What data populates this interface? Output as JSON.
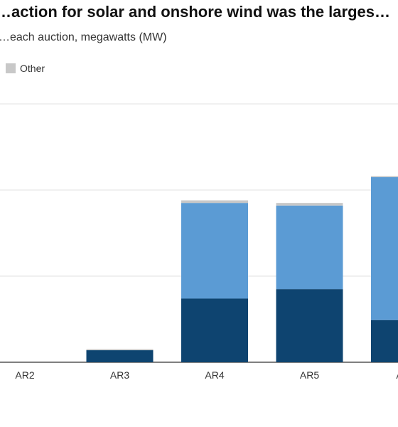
{
  "chart_data": {
    "type": "bar",
    "stacked": true,
    "title": "…action for solar and onshore wind was the larges…",
    "subtitle": "…each auction, megawatts (MW)",
    "categories": [
      "AR2",
      "AR3",
      "AR4",
      "AR5",
      "A…"
    ],
    "series": [
      {
        "name": "",
        "color": "#0e4470",
        "values": [
          0,
          70,
          370,
          425,
          245
        ]
      },
      {
        "name": "",
        "color": "#5b9bd4",
        "values": [
          0,
          0,
          555,
          485,
          830
        ]
      },
      {
        "name": "Other",
        "color": "#c8c8c8",
        "values": [
          0,
          6,
          15,
          15,
          6
        ]
      }
    ],
    "ylim": [
      0,
      1500
    ],
    "yticks": [
      0,
      500,
      1000,
      1500
    ],
    "grid": true,
    "legend_position": "top-left"
  }
}
